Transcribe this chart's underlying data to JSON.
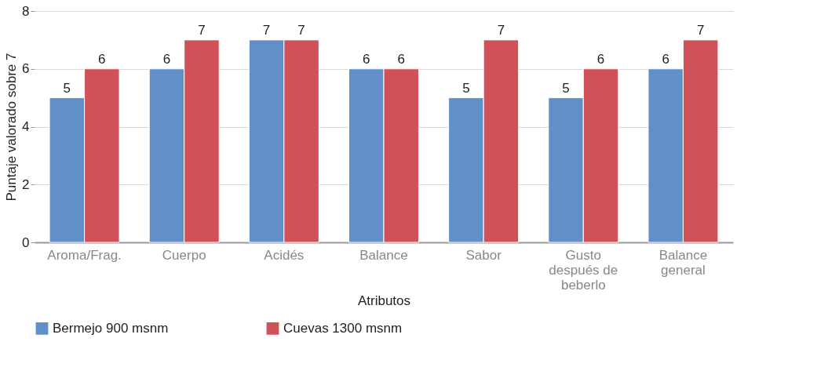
{
  "chart_data": {
    "type": "bar",
    "xlabel": "Atributos",
    "ylabel": "Puntaje valorado sobre 7",
    "categories": [
      "Aroma/Frag.",
      "Cuerpo",
      "Acidés",
      "Balance",
      "Sabor",
      "Gusto después de beberlo",
      "Balance general"
    ],
    "series": [
      {
        "name": "Bermejo 900 msnm",
        "color": "#6190c9",
        "values": [
          5,
          6,
          7,
          6,
          5,
          5,
          6
        ]
      },
      {
        "name": "Cuevas 1300 msnm",
        "color": "#d05258",
        "values": [
          6,
          7,
          7,
          6,
          7,
          6,
          7
        ]
      }
    ],
    "ylim": [
      0,
      8
    ],
    "yticks": [
      0,
      2,
      4,
      6,
      8
    ],
    "grid": "y",
    "legend": "bottom",
    "data_labels": true
  }
}
